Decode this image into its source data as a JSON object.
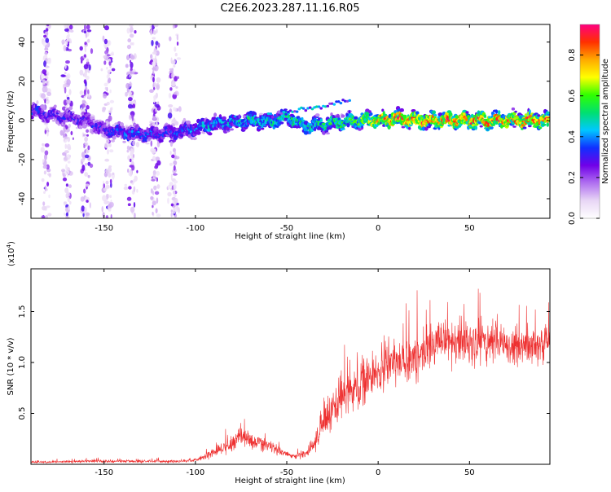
{
  "title": "C2E6.2023.287.11.16.R05",
  "chart_data": [
    {
      "type": "heatmap",
      "xlabel": "Height of straight line (km)",
      "ylabel": "Frequency (Hz)",
      "xlim": [
        -190,
        94
      ],
      "ylim": [
        -50,
        49
      ],
      "x_ticks": [
        -150,
        -100,
        -50,
        0,
        50
      ],
      "y_ticks": [
        -40,
        -20,
        0,
        20,
        40
      ],
      "colorbar": {
        "label": "Normalized spectral amplitude",
        "range": [
          0,
          0.95
        ],
        "ticks": [
          "0.0",
          "0.2",
          "0.4",
          "0.6",
          "0.8"
        ],
        "tick_values": [
          0,
          0.2,
          0.4,
          0.6,
          0.8
        ],
        "colormap": [
          "#ffffff",
          "#e8d6f5",
          "#b070f0",
          "#7000e8",
          "#1030ff",
          "#00c8ff",
          "#00e070",
          "#30ff00",
          "#ffff00",
          "#ffaa00",
          "#ff3000",
          "#ff0080"
        ]
      },
      "ridge": {
        "x": [
          -190,
          -175,
          -160,
          -150,
          -140,
          -130,
          -120,
          -110,
          -100,
          -90,
          -80,
          -70,
          -60,
          -50,
          -40,
          -30,
          -20,
          -10,
          0,
          10,
          20,
          30,
          40,
          50,
          60,
          70,
          80,
          94
        ],
        "center_hz": [
          5,
          2,
          0,
          -5,
          -6,
          -7,
          -7,
          -6,
          -4,
          -2,
          -1,
          0,
          -1,
          2,
          -3,
          -2,
          -1,
          0,
          0,
          1,
          0,
          0,
          0,
          0,
          0,
          0,
          0,
          0
        ],
        "intensity": [
          0.35,
          0.3,
          0.3,
          0.32,
          0.38,
          0.38,
          0.35,
          0.35,
          0.4,
          0.45,
          0.45,
          0.5,
          0.5,
          0.55,
          0.5,
          0.55,
          0.55,
          0.6,
          0.8,
          0.85,
          0.85,
          0.85,
          0.85,
          0.8,
          0.85,
          0.85,
          0.85,
          0.8
        ]
      },
      "scatter_bands_x": [
        -182,
        -170,
        -160,
        -148,
        -135,
        -122,
        -112
      ]
    },
    {
      "type": "line",
      "color": "#ee3030",
      "xlabel": "Height of straight line (km)",
      "ylabel": "SNR (10 * v/v)",
      "y_scale_label": "(x10",
      "y_scale_exp": "4",
      "y_scale_close": ")",
      "xlim": [
        -190,
        94
      ],
      "ylim": [
        0,
        1.92
      ],
      "x_ticks": [
        -150,
        -100,
        -50,
        0,
        50
      ],
      "y_ticks": [
        "0.5",
        "1.0",
        "1.5"
      ],
      "y_tick_values": [
        0.5,
        1.0,
        1.5
      ],
      "envelope": {
        "x": [
          -190,
          -160,
          -110,
          -100,
          -90,
          -80,
          -75,
          -70,
          -60,
          -55,
          -50,
          -45,
          -40,
          -35,
          -30,
          -25,
          -20,
          -10,
          0,
          10,
          20,
          30,
          40,
          50,
          60,
          70,
          80,
          94
        ],
        "mean": [
          0.02,
          0.03,
          0.03,
          0.04,
          0.12,
          0.2,
          0.3,
          0.24,
          0.18,
          0.15,
          0.1,
          0.08,
          0.1,
          0.2,
          0.4,
          0.55,
          0.65,
          0.8,
          0.9,
          1.0,
          1.05,
          1.15,
          1.2,
          1.2,
          1.2,
          1.18,
          1.15,
          1.2
        ],
        "spread": [
          0.01,
          0.02,
          0.02,
          0.02,
          0.06,
          0.12,
          0.15,
          0.12,
          0.08,
          0.07,
          0.04,
          0.04,
          0.05,
          0.12,
          0.2,
          0.3,
          0.3,
          0.3,
          0.3,
          0.3,
          0.3,
          0.3,
          0.3,
          0.3,
          0.3,
          0.3,
          0.3,
          0.3
        ]
      }
    }
  ]
}
